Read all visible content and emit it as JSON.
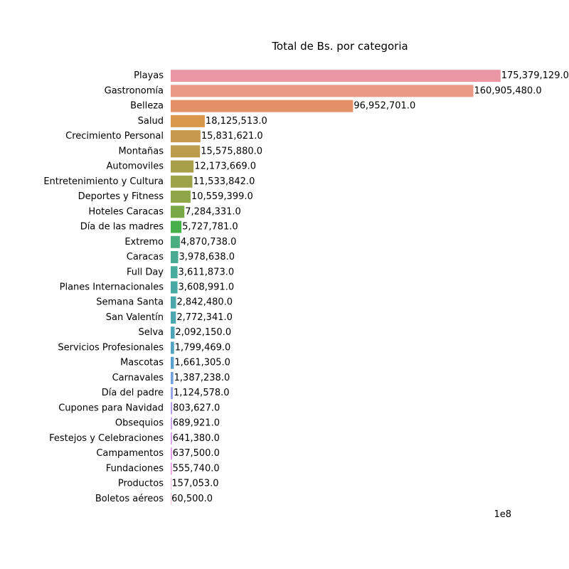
{
  "chart_data": {
    "type": "bar",
    "orientation": "horizontal",
    "title": "Total de Bs. por categoria",
    "xlabel": "",
    "ylabel": "",
    "x_offset_text": "1e8",
    "xlim": [
      0,
      180000000
    ],
    "grid": false,
    "legend": "none",
    "categories": [
      "Playas",
      "Gastronomía",
      "Belleza",
      "Salud",
      "Crecimiento Personal",
      "Montañas",
      "Automoviles",
      "Entretenimiento y Cultura",
      "Deportes y Fitness",
      "Hoteles Caracas",
      "Día de las madres",
      "Extremo",
      "Caracas",
      "Full Day",
      "Planes Internacionales",
      "Semana Santa",
      "San Valentín",
      "Selva",
      "Servicios Profesionales",
      "Mascotas",
      "Carnavales",
      "Día del padre",
      "Cupones para Navidad",
      "Obsequios",
      "Festejos y Celebraciones",
      "Campamentos",
      "Fundaciones",
      "Productos",
      "Boletos aéreos"
    ],
    "values": [
      175379129.0,
      160905480.0,
      96952701.0,
      18125513.0,
      15831621.0,
      15575880.0,
      12173669.0,
      11533842.0,
      10559399.0,
      7284331.0,
      5727781.0,
      4870738.0,
      3978638.0,
      3611873.0,
      3608991.0,
      2842480.0,
      2772341.0,
      2092150.0,
      1799469.0,
      1661305.0,
      1387238.0,
      1124578.0,
      803627.0,
      689921.0,
      641380.0,
      637500.0,
      555740.0,
      157053.0,
      60500.0
    ],
    "value_labels": [
      "175,379,129.0",
      "160,905,480.0",
      "96,952,701.0",
      "18,125,513.0",
      "15,831,621.0",
      "15,575,880.0",
      "12,173,669.0",
      "11,533,842.0",
      "10,559,399.0",
      "7,284,331.0",
      "5,727,781.0",
      "4,870,738.0",
      "3,978,638.0",
      "3,611,873.0",
      "3,608,991.0",
      "2,842,480.0",
      "2,772,341.0",
      "2,092,150.0",
      "1,799,469.0",
      "1,661,305.0",
      "1,387,238.0",
      "1,124,578.0",
      "803,627.0",
      "689,921.0",
      "641,380.0",
      "637,500.0",
      "555,740.0",
      "157,053.0",
      "60,500.0"
    ],
    "colors": [
      "#ea96a3",
      "#e99787",
      "#e39068",
      "#d9974a",
      "#c7994d",
      "#bb9c4b",
      "#aa9f49",
      "#9da348",
      "#8ea647",
      "#7ba846",
      "#48b04b",
      "#48ad7f",
      "#48ab91",
      "#48aa9b",
      "#49a9a2",
      "#4aa7a9",
      "#4ba6ae",
      "#4ea5b7",
      "#52a3c1",
      "#5aa0cd",
      "#70a0dc",
      "#94a5e5",
      "#b39fe9",
      "#c799ea",
      "#d790ea",
      "#e18ae5",
      "#e78adc",
      "#e98fce",
      "#ea93bf"
    ]
  }
}
